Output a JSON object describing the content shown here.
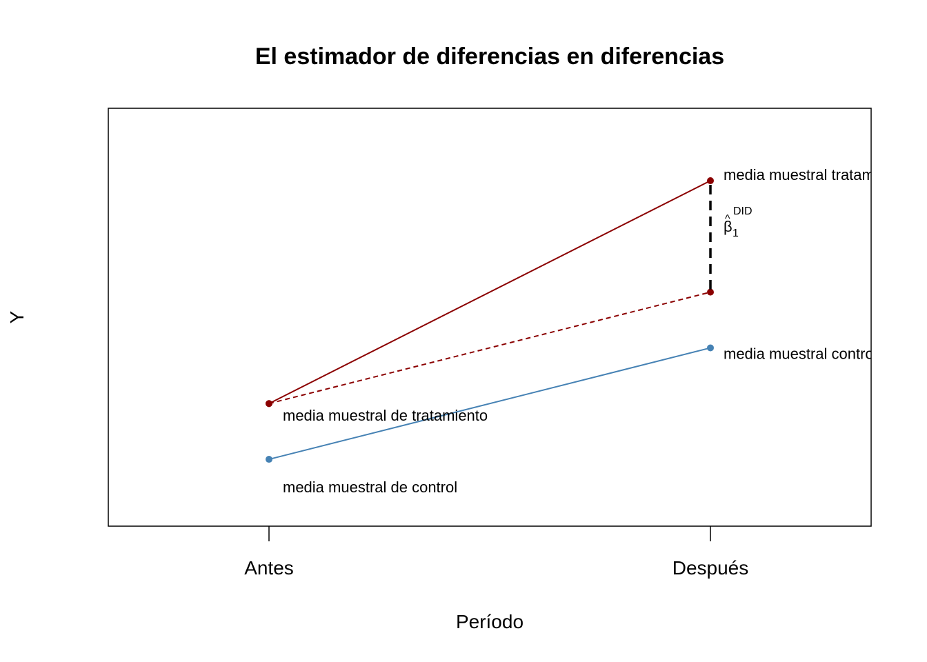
{
  "chart_data": {
    "type": "line",
    "title": "El estimador de diferencias en diferencias",
    "xlabel": "Período",
    "ylabel": "Y",
    "categories": [
      "Antes",
      "Después"
    ],
    "ylim": [
      0.5,
      8.0
    ],
    "grid": false,
    "series": [
      {
        "name": "",
        "values": [
          2.7,
          6.7
        ],
        "color": "#8B0000",
        "style": "solid"
      },
      {
        "name": "",
        "values": [
          2.7,
          4.7
        ],
        "color": "#8B0000",
        "style": "dashed"
      },
      {
        "name": "",
        "values": [
          1.7,
          3.7
        ],
        "color": "#4682B4",
        "style": "solid"
      }
    ],
    "annotations": {
      "treat_before": "media muestral de tratamiento",
      "control_before": "media muestral de control",
      "treat_after": "media muestral tratamiento",
      "control_after": "media muestral control",
      "beta_symbol": "β",
      "beta_hat": "^",
      "beta_sub": "1",
      "beta_sup": "DID"
    }
  }
}
